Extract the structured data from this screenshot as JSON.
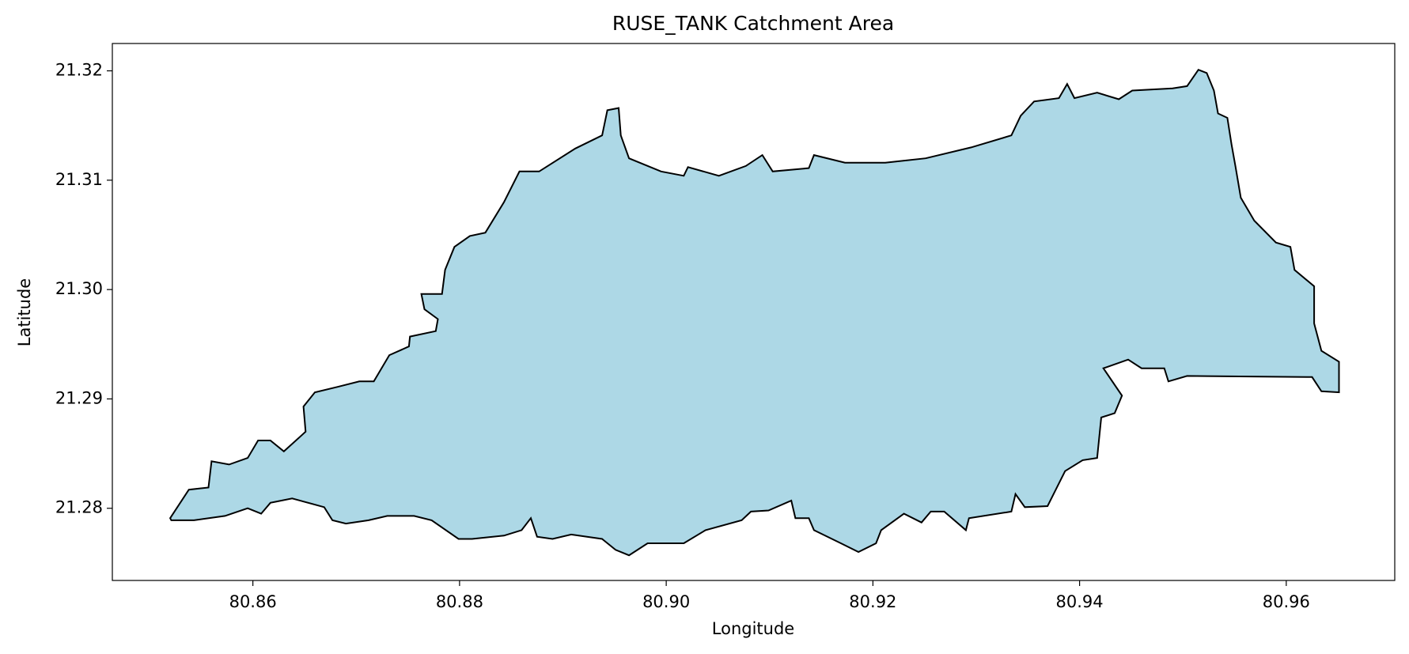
{
  "chart_data": {
    "type": "polygon",
    "title": "RUSE_TANK Catchment Area",
    "x_label": "Longitude",
    "y_label": "Latitude",
    "xlim": [
      80.8464,
      80.9705
    ],
    "ylim": [
      21.2734,
      21.3225
    ],
    "xticks": [
      80.86,
      80.88,
      {
        "value": 80.9,
        "label": "80.90"
      },
      80.92,
      80.94,
      80.96
    ],
    "yticks": [
      21.28,
      21.29,
      {
        "value": 21.3,
        "label": "21.30"
      },
      21.31,
      21.32
    ],
    "fill": "#add8e6",
    "edgecolor": "#000000",
    "x": [
      80.852,
      80.8538,
      80.8557,
      80.856,
      80.8577,
      80.8595,
      80.8605,
      80.8617,
      80.863,
      80.8651,
      80.8649,
      80.866,
      80.8682,
      80.8703,
      80.8717,
      80.8732,
      80.8751,
      80.8752,
      80.8777,
      80.8779,
      80.8766,
      80.8763,
      80.8783,
      80.8786,
      80.8795,
      80.881,
      80.8825,
      80.8843,
      80.8858,
      80.8877,
      80.8912,
      80.8938,
      80.8943,
      80.8954,
      80.8956,
      80.8964,
      80.8995,
      80.9017,
      80.9021,
      80.9051,
      80.9077,
      80.9093,
      80.9103,
      80.9138,
      80.9143,
      80.9173,
      80.9212,
      80.9251,
      80.9295,
      80.9334,
      80.9343,
      80.9356,
      80.938,
      80.9388,
      80.9395,
      80.9417,
      80.9438,
      80.9451,
      80.949,
      80.9504,
      80.9515,
      80.9523,
      80.953,
      80.9534,
      80.9543,
      80.9547,
      80.9551,
      80.9556,
      80.9569,
      80.959,
      80.9604,
      80.9608,
      80.9627,
      80.9627,
      80.9634,
      80.9651,
      80.9651,
      80.9634,
      80.9625,
      80.9504,
      80.9486,
      80.9482,
      80.946,
      80.9447,
      80.9423,
      80.9441,
      80.9434,
      80.9421,
      80.9417,
      80.9403,
      80.9386,
      80.9369,
      80.9347,
      80.9338,
      80.9334,
      80.9293,
      80.929,
      80.9269,
      80.9256,
      80.9247,
      80.923,
      80.9208,
      80.9203,
      80.9186,
      80.9169,
      80.9143,
      80.9138,
      80.9125,
      80.9121,
      80.9099,
      80.9082,
      80.9073,
      80.9038,
      80.9017,
      80.8982,
      80.8964,
      80.8951,
      80.8938,
      80.8908,
      80.889,
      80.8875,
      80.8869,
      80.886,
      80.8843,
      80.8812,
      80.8799,
      80.8773,
      80.8756,
      80.873,
      80.8712,
      80.869,
      80.8677,
      80.8669,
      80.8638,
      80.8617,
      80.8608,
      80.8595,
      80.8573,
      80.8543,
      80.8521
    ],
    "y": [
      21.2791,
      21.2817,
      21.2819,
      21.2843,
      21.284,
      21.2846,
      21.2862,
      21.2862,
      21.2852,
      21.287,
      21.2893,
      21.2906,
      21.2911,
      21.2916,
      21.2916,
      21.294,
      21.2948,
      21.2957,
      21.2962,
      21.2973,
      21.2982,
      21.2996,
      21.2996,
      21.3018,
      21.3039,
      21.3049,
      21.3052,
      21.308,
      21.3108,
      21.3108,
      21.3129,
      21.3141,
      21.3164,
      21.3166,
      21.3141,
      21.312,
      21.3108,
      21.3104,
      21.3112,
      21.3104,
      21.3113,
      21.3123,
      21.3108,
      21.3111,
      21.3123,
      21.3116,
      21.3116,
      21.312,
      21.313,
      21.3141,
      21.3159,
      21.3172,
      21.3175,
      21.3188,
      21.3175,
      21.318,
      21.3174,
      21.3182,
      21.3184,
      21.3186,
      21.3201,
      21.3198,
      21.3182,
      21.3161,
      21.3157,
      21.3133,
      21.3112,
      21.3084,
      21.3063,
      21.3043,
      21.3039,
      21.3018,
      21.3003,
      21.2969,
      21.2944,
      21.2934,
      21.2906,
      21.2907,
      21.292,
      21.2921,
      21.2916,
      21.2928,
      21.2928,
      21.2936,
      21.2928,
      21.2903,
      21.2887,
      21.2883,
      21.2846,
      21.2844,
      21.2834,
      21.2802,
      21.2801,
      21.2813,
      21.2797,
      21.2791,
      21.278,
      21.2797,
      21.2797,
      21.2787,
      21.2795,
      21.278,
      21.2768,
      21.276,
      21.2768,
      21.278,
      21.2791,
      21.2791,
      21.2807,
      21.2798,
      21.2797,
      21.2789,
      21.278,
      21.2768,
      21.2768,
      21.2757,
      21.2762,
      21.2772,
      21.2776,
      21.2772,
      21.2774,
      21.2791,
      21.278,
      21.2775,
      21.2772,
      21.2772,
      21.2789,
      21.2793,
      21.2793,
      21.2789,
      21.2786,
      21.2789,
      21.2801,
      21.2809,
      21.2805,
      21.2795,
      21.28,
      21.2793,
      21.2789,
      21.2789
    ]
  }
}
